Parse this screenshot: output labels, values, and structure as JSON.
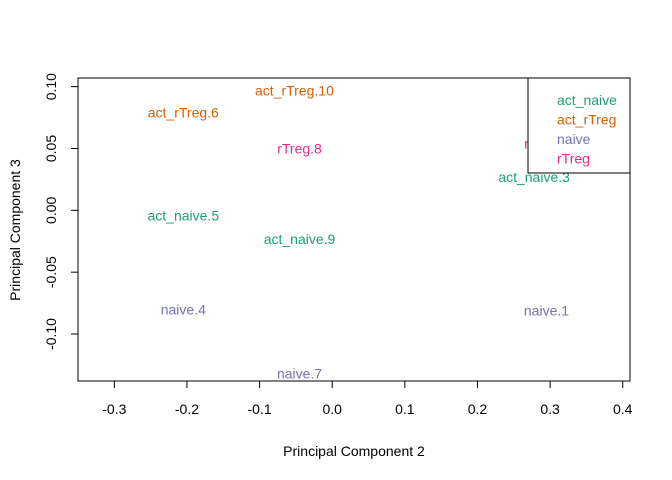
{
  "chart_data": {
    "type": "scatter",
    "title": "",
    "xlabel": "Principal Component 2",
    "ylabel": "Principal Component 3",
    "xlim": [
      -0.35,
      0.41
    ],
    "ylim": [
      -0.138,
      0.107
    ],
    "xticks": [
      -0.3,
      -0.2,
      -0.1,
      0.0,
      0.1,
      0.2,
      0.3,
      0.4
    ],
    "xtick_labels": [
      "-0.3",
      "-0.2",
      "-0.1",
      "0.0",
      "0.1",
      "0.2",
      "0.3",
      "0.4"
    ],
    "yticks": [
      -0.1,
      -0.05,
      0.0,
      0.05,
      0.1
    ],
    "ytick_labels": [
      "-0.10",
      "-0.05",
      "0.00",
      "0.05",
      "0.10"
    ],
    "grid": false,
    "legend_position": "top-right",
    "groups": [
      {
        "name": "act_naive",
        "color": "#1B9E77"
      },
      {
        "name": "act_rTreg",
        "color": "#D95F02"
      },
      {
        "name": "naive",
        "color": "#7570B3"
      },
      {
        "name": "rTreg",
        "color": "#E7298A"
      }
    ],
    "points": [
      {
        "label": "naive.1",
        "group": "naive",
        "x": 0.295,
        "y": -0.081
      },
      {
        "label": "rTreg.2",
        "group": "rTreg",
        "x": 0.295,
        "y": 0.054
      },
      {
        "label": "act_naive.3",
        "group": "act_naive",
        "x": 0.278,
        "y": 0.027
      },
      {
        "label": "naive.4",
        "group": "naive",
        "x": -0.205,
        "y": -0.08
      },
      {
        "label": "act_naive.5",
        "group": "act_naive",
        "x": -0.205,
        "y": -0.004
      },
      {
        "label": "act_rTreg.6",
        "group": "act_rTreg",
        "x": -0.205,
        "y": 0.079
      },
      {
        "label": "naive.7",
        "group": "naive",
        "x": -0.045,
        "y": -0.132
      },
      {
        "label": "rTreg.8",
        "group": "rTreg",
        "x": -0.045,
        "y": 0.05
      },
      {
        "label": "act_naive.9",
        "group": "act_naive",
        "x": -0.045,
        "y": -0.023
      },
      {
        "label": "act_rTreg.10",
        "group": "act_rTreg",
        "x": -0.052,
        "y": 0.097
      }
    ]
  }
}
